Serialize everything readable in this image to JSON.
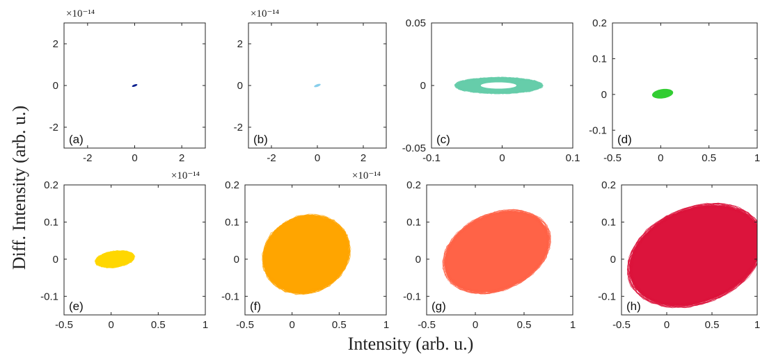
{
  "figure": {
    "xlabel": "Intensity (arb. u.)",
    "ylabel": "Diff. Intensity (arb. u.)"
  },
  "chart_data": [
    {
      "type": "scatter",
      "label": "(a)",
      "color": "#0a1f8f",
      "xlim": [
        -3,
        3
      ],
      "ylim": [
        -3,
        3
      ],
      "xticks": [
        -2,
        0,
        2
      ],
      "xtick_labels": [
        "-2",
        "0",
        "2"
      ],
      "yticks": [
        -2,
        0,
        2
      ],
      "ytick_labels": [
        "-2",
        "0",
        "2"
      ],
      "multiplier": "×10⁻¹⁴",
      "multiplier_pos": "top-left",
      "blob": {
        "cx": 0,
        "cy": 0,
        "rx": 0.12,
        "ry": 0.05,
        "rot": -20,
        "hole": 0
      }
    },
    {
      "type": "scatter",
      "label": "(b)",
      "color": "#87ceeb",
      "xlim": [
        -3,
        3
      ],
      "ylim": [
        -3,
        3
      ],
      "xticks": [
        -2,
        0,
        2
      ],
      "xtick_labels": [
        "-2",
        "0",
        "2"
      ],
      "yticks": [
        -2,
        0,
        2
      ],
      "ytick_labels": [
        "-2",
        "0",
        "2"
      ],
      "multiplier": "×10⁻¹⁴",
      "multiplier_pos": "top-left",
      "blob": {
        "cx": 0,
        "cy": 0,
        "rx": 0.15,
        "ry": 0.06,
        "rot": -20,
        "hole": 0
      }
    },
    {
      "type": "scatter",
      "label": "(c)",
      "color": "#66cdaa",
      "xlim": [
        -0.1,
        0.1
      ],
      "ylim": [
        -0.05,
        0.05
      ],
      "xticks": [
        -0.1,
        0,
        0.1
      ],
      "xtick_labels": [
        "-0.1",
        "0",
        "0.1"
      ],
      "yticks": [
        -0.05,
        0,
        0.05
      ],
      "ytick_labels": [
        "-0.05",
        "0",
        "0.05"
      ],
      "multiplier": "",
      "multiplier_pos": "",
      "blob": {
        "cx": -0.005,
        "cy": 0,
        "rx": 0.06,
        "ry": 0.006,
        "rot": 0,
        "hole": 0.42
      }
    },
    {
      "type": "scatter",
      "label": "(d)",
      "color": "#32cd32",
      "xlim": [
        -0.5,
        1
      ],
      "ylim": [
        -0.15,
        0.2
      ],
      "xticks": [
        -0.5,
        0,
        0.5,
        1
      ],
      "xtick_labels": [
        "-0.5",
        "0",
        "0.5",
        "1"
      ],
      "yticks": [
        -0.1,
        0,
        0.1,
        0.2
      ],
      "ytick_labels": [
        "-0.1",
        "0",
        "0.1",
        "0.2"
      ],
      "multiplier": "",
      "multiplier_pos": "",
      "blob": {
        "cx": 0.02,
        "cy": 0.002,
        "rx": 0.11,
        "ry": 0.013,
        "rot": -8,
        "hole": 0
      }
    },
    {
      "type": "scatter",
      "label": "(e)",
      "color": "#ffd700",
      "xlim": [
        -0.5,
        1
      ],
      "ylim": [
        -0.15,
        0.2
      ],
      "xticks": [
        -0.5,
        0,
        0.5,
        1
      ],
      "xtick_labels": [
        "-0.5",
        "0",
        "0.5",
        "1"
      ],
      "yticks": [
        -0.1,
        0,
        0.1,
        0.2
      ],
      "ytick_labels": [
        "-0.1",
        "0",
        "0.1",
        "0.2"
      ],
      "multiplier": "×10⁻¹⁴",
      "multiplier_pos": "top-right",
      "blob": {
        "cx": 0.04,
        "cy": 0.0,
        "rx": 0.2,
        "ry": 0.02,
        "rot": -8,
        "hole": 0
      }
    },
    {
      "type": "scatter",
      "label": "(f)",
      "color": "#ffa500",
      "xlim": [
        -0.5,
        1
      ],
      "ylim": [
        -0.15,
        0.2
      ],
      "xticks": [
        -0.5,
        0,
        0.5,
        1
      ],
      "xtick_labels": [
        "-0.5",
        "0",
        "0.5",
        "1"
      ],
      "yticks": [
        -0.1,
        0,
        0.1,
        0.2
      ],
      "ytick_labels": [
        "-0.1",
        "0",
        "0.1",
        "0.2"
      ],
      "multiplier": "×10⁻¹⁴",
      "multiplier_pos": "top-right",
      "blob": {
        "cx": 0.15,
        "cy": 0.013,
        "rx": 0.46,
        "ry": 0.1,
        "rot": -25,
        "hole": 0
      }
    },
    {
      "type": "scatter",
      "label": "(g)",
      "color": "#ff6347",
      "xlim": [
        -0.5,
        1
      ],
      "ylim": [
        -0.15,
        0.2
      ],
      "xticks": [
        -0.5,
        0,
        0.5,
        1
      ],
      "xtick_labels": [
        "-0.5",
        "0",
        "0.5",
        "1"
      ],
      "yticks": [
        -0.1,
        0,
        0.1,
        0.2
      ],
      "ytick_labels": [
        "-0.1",
        "0",
        "0.1",
        "0.2"
      ],
      "multiplier": "",
      "multiplier_pos": "",
      "blob": {
        "cx": 0.22,
        "cy": 0.02,
        "rx": 0.56,
        "ry": 0.1,
        "rot": -24,
        "hole": 0
      }
    },
    {
      "type": "scatter",
      "label": "(h)",
      "color": "#dc143c",
      "xlim": [
        -0.5,
        1
      ],
      "ylim": [
        -0.15,
        0.2
      ],
      "xticks": [
        -0.5,
        0,
        0.5,
        1
      ],
      "xtick_labels": [
        "-0.5",
        "0",
        "0.5",
        "1"
      ],
      "yticks": [
        -0.1,
        0,
        0.1,
        0.2
      ],
      "ytick_labels": [
        "-0.1",
        "0",
        "0.1",
        "0.2"
      ],
      "multiplier": "",
      "multiplier_pos": "",
      "blob": {
        "cx": 0.32,
        "cy": 0.01,
        "rx": 0.76,
        "ry": 0.125,
        "rot": -22,
        "hole": 0
      }
    }
  ]
}
